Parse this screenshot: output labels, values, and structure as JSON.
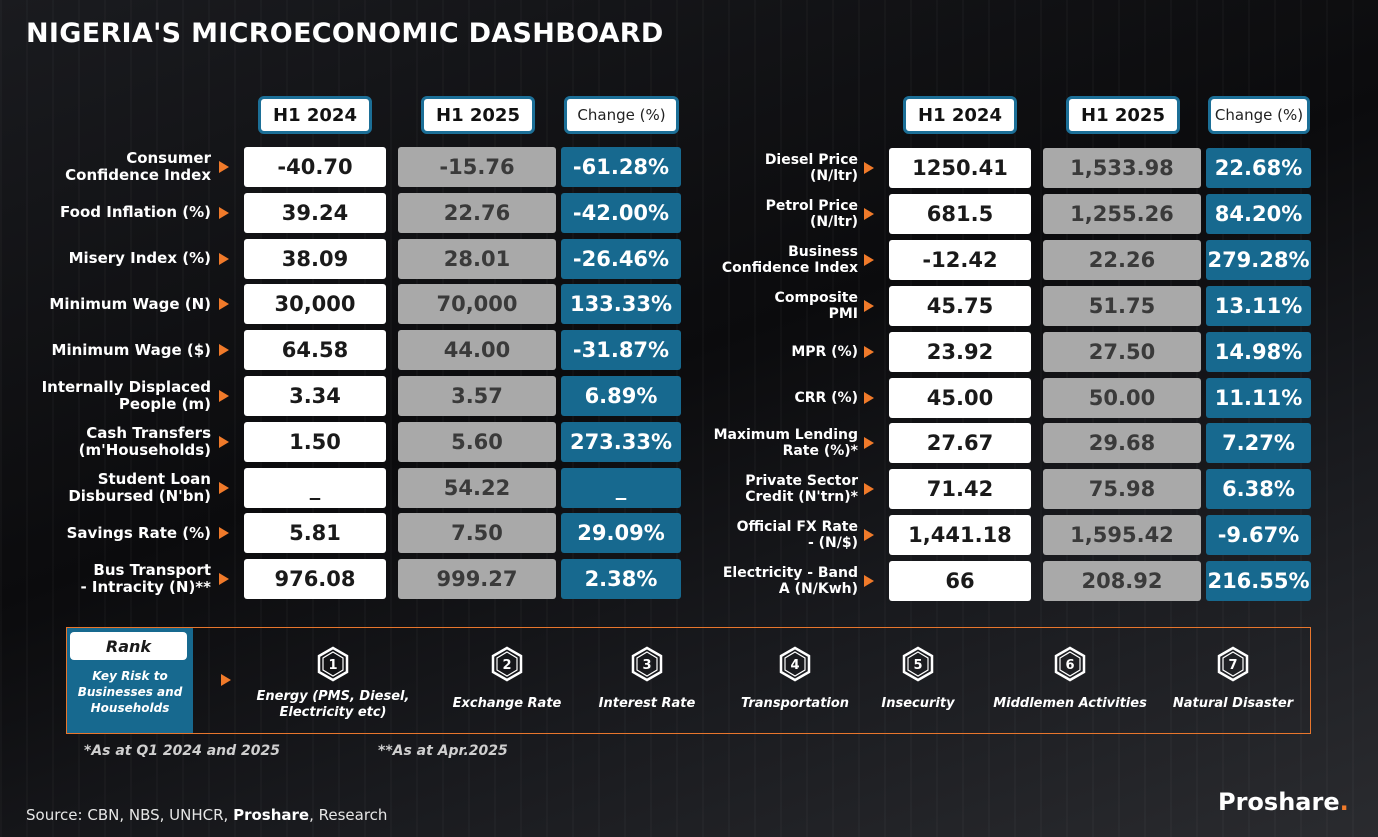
{
  "title": "NIGERIA'S MICROECONOMIC DASHBOARD",
  "headers": {
    "h1_2024": "H1 2024",
    "h1_2025": "H1 2025",
    "change": "Change (%)"
  },
  "left_rows": [
    {
      "label_lines": [
        "Consumer",
        "Confidence Index"
      ],
      "h1_2024": "-40.70",
      "h1_2025": "-15.76",
      "change": "-61.28%"
    },
    {
      "label_lines": [
        "Food Inflation (%)"
      ],
      "h1_2024": "39.24",
      "h1_2025": "22.76",
      "change": "-42.00%"
    },
    {
      "label_lines": [
        "Misery Index (%)"
      ],
      "h1_2024": "38.09",
      "h1_2025": "28.01",
      "change": "-26.46%"
    },
    {
      "label_lines": [
        "Minimum Wage (N)"
      ],
      "h1_2024": "30,000",
      "h1_2025": "70,000",
      "change": "133.33%"
    },
    {
      "label_lines": [
        "Minimum Wage ($)"
      ],
      "h1_2024": "64.58",
      "h1_2025": "44.00",
      "change": "-31.87%"
    },
    {
      "label_lines": [
        "Internally Displaced",
        "People (m)"
      ],
      "h1_2024": "3.34",
      "h1_2025": "3.57",
      "change": "6.89%"
    },
    {
      "label_lines": [
        "Cash Transfers",
        "(m'Households)"
      ],
      "h1_2024": "1.50",
      "h1_2025": "5.60",
      "change": "273.33%"
    },
    {
      "label_lines": [
        "Student Loan",
        "Disbursed (N'bn)"
      ],
      "h1_2024": "_",
      "h1_2025": "54.22",
      "change": "_"
    },
    {
      "label_lines": [
        "Savings Rate (%)"
      ],
      "h1_2024": "5.81",
      "h1_2025": "7.50",
      "change": "29.09%"
    },
    {
      "label_lines": [
        "Bus Transport",
        "- Intracity  (N)**"
      ],
      "h1_2024": "976.08",
      "h1_2025": "999.27",
      "change": "2.38%"
    }
  ],
  "right_rows": [
    {
      "label_lines": [
        "Diesel Price",
        "(N/ltr)"
      ],
      "h1_2024": "1250.41",
      "h1_2025": "1,533.98",
      "change": "22.68%"
    },
    {
      "label_lines": [
        "Petrol Price",
        "(N/ltr)"
      ],
      "h1_2024": "681.5",
      "h1_2025": "1,255.26",
      "change": "84.20%"
    },
    {
      "label_lines": [
        "Business",
        "Confidence Index"
      ],
      "h1_2024": "-12.42",
      "h1_2025": "22.26",
      "change": "279.28%"
    },
    {
      "label_lines": [
        "Composite",
        "PMI"
      ],
      "h1_2024": "45.75",
      "h1_2025": "51.75",
      "change": "13.11%"
    },
    {
      "label_lines": [
        "MPR (%)"
      ],
      "h1_2024": "23.92",
      "h1_2025": "27.50",
      "change": "14.98%"
    },
    {
      "label_lines": [
        "CRR (%)"
      ],
      "h1_2024": "45.00",
      "h1_2025": "50.00",
      "change": "11.11%"
    },
    {
      "label_lines": [
        "Maximum Lending",
        "Rate (%)*"
      ],
      "h1_2024": "27.67",
      "h1_2025": "29.68",
      "change": "7.27%"
    },
    {
      "label_lines": [
        "Private Sector",
        "Credit (N'trn)*"
      ],
      "h1_2024": "71.42",
      "h1_2025": "75.98",
      "change": "6.38%"
    },
    {
      "label_lines": [
        "Official FX Rate",
        "- (N/$)"
      ],
      "h1_2024": "1,441.18",
      "h1_2025": "1,595.42",
      "change": "-9.67%"
    },
    {
      "label_lines": [
        "Electricity - Band",
        "A (N/Kwh)"
      ],
      "h1_2024": "66",
      "h1_2025": "208.92",
      "change": "216.55%"
    }
  ],
  "risk": {
    "rank_label": "Rank",
    "panel_lines": [
      "Key Risk to",
      "Businesses and",
      "Households"
    ],
    "items": [
      {
        "rank": "1",
        "lines": [
          "Energy (PMS, Diesel,",
          "Electricity etc)"
        ]
      },
      {
        "rank": "2",
        "lines": [
          "Exchange Rate"
        ]
      },
      {
        "rank": "3",
        "lines": [
          "Interest Rate"
        ]
      },
      {
        "rank": "4",
        "lines": [
          "Transportation"
        ]
      },
      {
        "rank": "5",
        "lines": [
          "Insecurity"
        ]
      },
      {
        "rank": "6",
        "lines": [
          "Middlemen Activities"
        ]
      },
      {
        "rank": "7",
        "lines": [
          "Natural Disaster"
        ]
      }
    ]
  },
  "notes": {
    "q1": "*As at Q1 2024 and 2025",
    "apr": "**As at Apr.2025"
  },
  "source": {
    "prefix": "Source: CBN, NBS, UNHCR, ",
    "bold": "Proshare",
    "suffix": ", Research"
  },
  "logo": {
    "text": "Proshare",
    "dot": "."
  },
  "colors": {
    "accent_orange": "#f07a2a",
    "teal": "#17698f",
    "grey_cell": "#a9a9a9",
    "white_cell": "#ffffff"
  }
}
